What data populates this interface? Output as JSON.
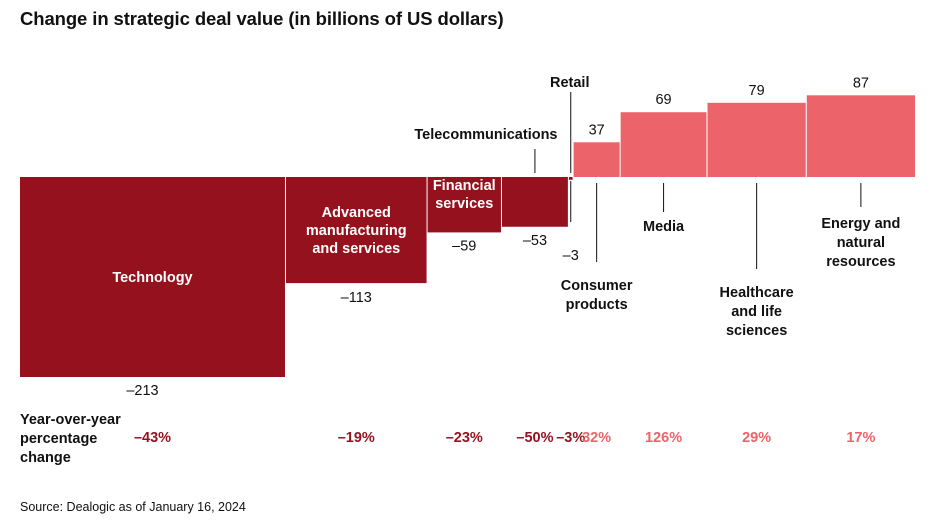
{
  "chart_data": {
    "type": "bar",
    "title": "Change in strategic deal value (in billions of US dollars)",
    "xlabel": "",
    "ylabel": "",
    "categories": [
      "Technology",
      "Advanced manufacturing and services",
      "Financial services",
      "Telecommunications",
      "Retail",
      "Consumer products",
      "Media",
      "Healthcare and life sciences",
      "Energy and natural resources"
    ],
    "category_label_lines": [
      [
        "Technology"
      ],
      [
        "Advanced",
        "manufacturing",
        "and services"
      ],
      [
        "Financial",
        "services"
      ],
      [
        "Telecommunications"
      ],
      [
        "Retail"
      ],
      [
        "Consumer",
        "products"
      ],
      [
        "Media"
      ],
      [
        "Healthcare",
        "and life",
        "sciences"
      ],
      [
        "Energy and",
        "natural",
        "resources"
      ]
    ],
    "values": [
      -213,
      -113,
      -59,
      -53,
      -3,
      37,
      69,
      79,
      87
    ],
    "value_labels": [
      "–213",
      "–113",
      "–59",
      "–53",
      "–3",
      "37",
      "69",
      "79",
      "87"
    ],
    "yoy_label_lines": [
      "Year-over-year",
      "percentage",
      "change"
    ],
    "yoy_change": [
      "–43%",
      "–19%",
      "–23%",
      "–50%",
      "–3%",
      "32%",
      "126%",
      "29%",
      "17%"
    ],
    "colors": {
      "negative": "#96111e",
      "positive": "#ec6469",
      "negative_text": "#96111e",
      "positive_text": "#ec6469"
    },
    "source": "Source: Dealogic as of January 16, 2024"
  }
}
